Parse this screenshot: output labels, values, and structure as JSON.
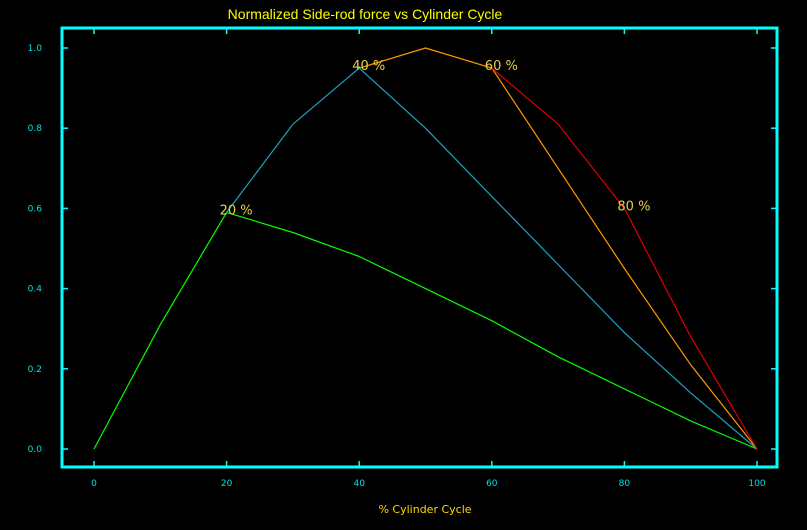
{
  "chart_data": {
    "type": "line",
    "title": "Normalized Side-rod force vs Cylinder Cycle",
    "xlabel": "% Cylinder Cycle",
    "ylabel": "",
    "xlim": [
      0,
      100
    ],
    "ylim": [
      0.0,
      1.05
    ],
    "xticks": [
      "0",
      "20",
      "40",
      "60",
      "80",
      "100"
    ],
    "yticks": [
      "0.0",
      "0.2",
      "0.4",
      "0.6",
      "0.8",
      "1.0"
    ],
    "grid": false,
    "legend": false,
    "series": [
      {
        "color": "#00ff00",
        "x": [
          0,
          10,
          20,
          30,
          40,
          50,
          60,
          70,
          80,
          90,
          100
        ],
        "y": [
          0.0,
          0.31,
          0.59,
          0.54,
          0.48,
          0.4,
          0.32,
          0.23,
          0.15,
          0.07,
          0.0
        ]
      },
      {
        "color": "#1ca3b8",
        "x": [
          20,
          30,
          40,
          50,
          60,
          70,
          80,
          90,
          100
        ],
        "y": [
          0.59,
          0.81,
          0.95,
          0.8,
          0.63,
          0.46,
          0.29,
          0.14,
          0.0
        ]
      },
      {
        "color": "#ff9900",
        "x": [
          40,
          50,
          60,
          70,
          80,
          90,
          100
        ],
        "y": [
          0.95,
          1.0,
          0.95,
          0.7,
          0.45,
          0.21,
          0.0
        ]
      },
      {
        "color": "#dd0000",
        "x": [
          60,
          70,
          80,
          90,
          100
        ],
        "y": [
          0.95,
          0.81,
          0.6,
          0.28,
          0.0
        ]
      }
    ],
    "annotations": [
      {
        "text": "20 %",
        "x": 20,
        "y": 0.59
      },
      {
        "text": "40 %",
        "x": 40,
        "y": 0.95
      },
      {
        "text": "60 %",
        "x": 60,
        "y": 0.95
      },
      {
        "text": "80 %",
        "x": 80,
        "y": 0.6
      }
    ],
    "colors": {
      "frame": "#00ffff",
      "tick_label": "#00e0e0",
      "title": "#ffff00",
      "axis_label": "#ffd700",
      "annotation": "#e6d246",
      "background": "#000000"
    }
  }
}
